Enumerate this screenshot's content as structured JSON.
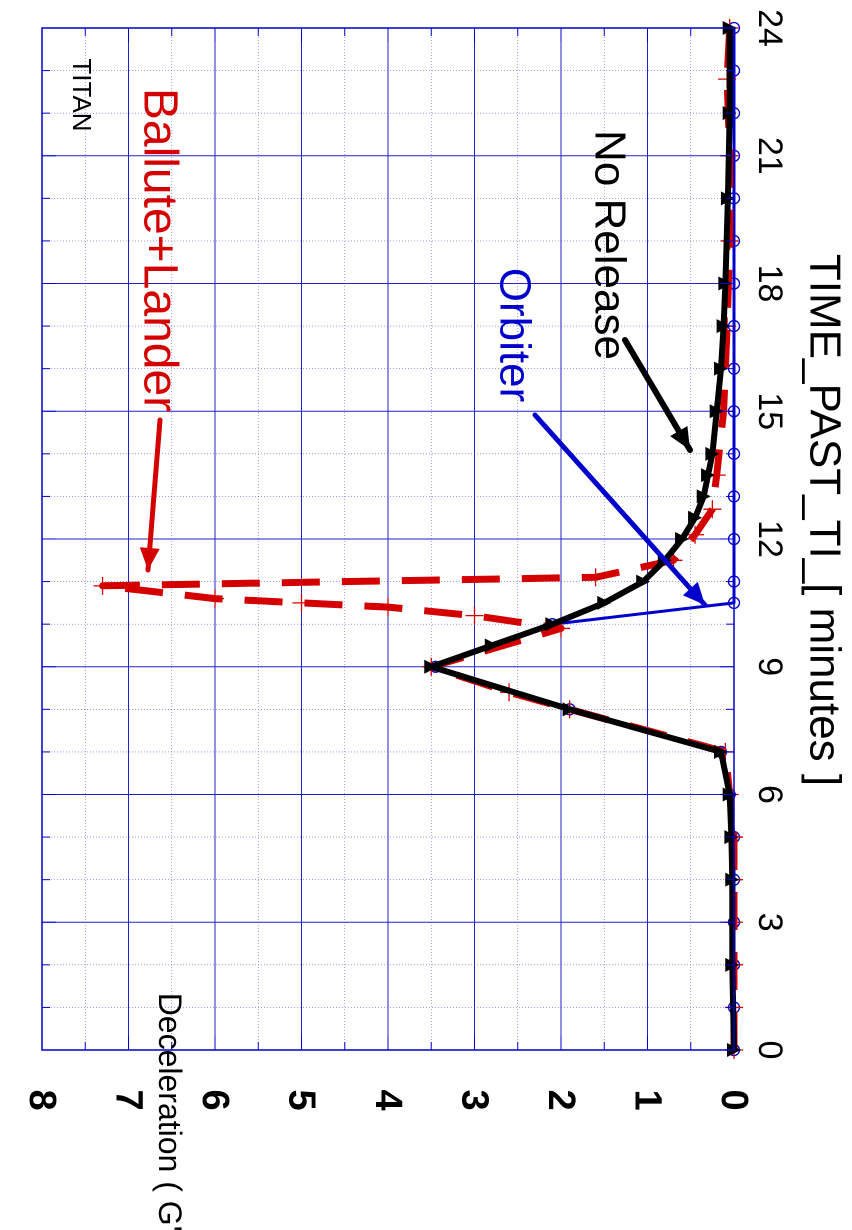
{
  "chart_data": {
    "type": "line",
    "orientation": "rotated-90-cw",
    "title": "TITAN",
    "xlabel": "TIME_PAST_TI_[ minutes ]",
    "ylabel": "Deceleration ( G's )",
    "xlim": [
      0,
      24
    ],
    "ylim": [
      0,
      8
    ],
    "x_ticks": [
      "0",
      "3",
      "6",
      "9",
      "12",
      "15",
      "18",
      "21",
      "24"
    ],
    "y_ticks": [
      "0",
      "1",
      "2",
      "3",
      "4",
      "5",
      "6",
      "7",
      "8"
    ],
    "grid": true,
    "series": [
      {
        "name": "Ballute+Lander",
        "color": "#d40000",
        "style": "dashed",
        "marker": "plus",
        "x": [
          0,
          1,
          2,
          3,
          4,
          5,
          6,
          7,
          8,
          8.4,
          9,
          9.9,
          10.2,
          10.4,
          10.5,
          10.6,
          10.9,
          11.1,
          11.5,
          12.1,
          12.7,
          13.5,
          15,
          17,
          19,
          21,
          22.8,
          24
        ],
        "y": [
          0,
          0,
          0,
          0,
          0,
          0,
          0.05,
          0.1,
          1.9,
          2.6,
          3.5,
          2.0,
          3.0,
          4.0,
          5.0,
          6.0,
          7.3,
          1.6,
          0.7,
          0.45,
          0.25,
          0.2,
          0.12,
          0.08,
          0.05,
          0.05,
          0.08,
          0.05
        ]
      },
      {
        "name": "Orbiter",
        "color": "#0000cc",
        "style": "solid",
        "marker": "circle",
        "x": [
          0,
          1,
          2,
          3,
          4,
          5,
          6,
          7,
          8,
          9,
          10,
          10.5,
          11,
          12,
          13,
          14,
          15,
          16,
          17,
          18,
          19,
          20,
          21,
          22,
          23,
          24
        ],
        "y": [
          0,
          0,
          0,
          0,
          0,
          0,
          0.05,
          0.15,
          1.9,
          3.45,
          2.1,
          0,
          0,
          0,
          0,
          0,
          0,
          0,
          0,
          0,
          0,
          0,
          0,
          0,
          0,
          0
        ]
      },
      {
        "name": "No Release",
        "color": "#000000",
        "style": "solid",
        "marker": "triangle",
        "x": [
          0,
          2,
          4,
          5,
          6,
          7,
          8,
          9,
          9.5,
          10,
          10.5,
          11,
          11.5,
          12,
          12.5,
          13,
          13.5,
          14,
          15,
          16,
          17,
          18,
          20,
          22,
          24
        ],
        "y": [
          0,
          0.02,
          0.02,
          0.03,
          0.05,
          0.15,
          1.9,
          3.5,
          2.8,
          2.1,
          1.5,
          1.05,
          0.8,
          0.6,
          0.45,
          0.35,
          0.3,
          0.25,
          0.2,
          0.15,
          0.12,
          0.1,
          0.07,
          0.05,
          0.05
        ]
      }
    ],
    "annotations": [
      "Ballute+Lander",
      "Orbiter",
      "No Release"
    ]
  }
}
